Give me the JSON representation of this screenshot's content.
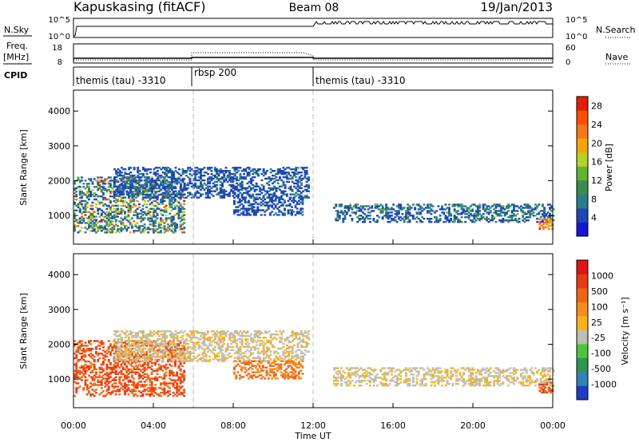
{
  "header": {
    "title": "Kapuskasing (fitACF)",
    "beam": "Beam 08",
    "date": "19/Jan/2013"
  },
  "top_panels": {
    "nsky_label": "N.Sky",
    "nsky_ticks": [
      "10^5",
      "10^0"
    ],
    "nsearch_label": "N.Search",
    "nsearch_ticks": [
      "10^5",
      "10^0"
    ],
    "freq_label_1": "Freq.",
    "freq_label_2": "[MHz]",
    "freq_ticks": [
      "18",
      "8"
    ],
    "nave_label": "Nave",
    "nave_ticks": [
      "60",
      "0"
    ],
    "cpid_label": "CPID",
    "cpid_segments": [
      {
        "label": "themis (tau) -3310",
        "start_hour": 0,
        "end_hour": 6
      },
      {
        "label": "rbsp 200",
        "start_hour": 6,
        "end_hour": 12
      },
      {
        "label": "themis (tau) -3310",
        "start_hour": 12,
        "end_hour": 24
      }
    ]
  },
  "colors": {
    "power_scale": [
      "#1414d2",
      "#1e46b4",
      "#287d8c",
      "#3c8c50",
      "#5fb432",
      "#b4d228",
      "#f5a50a",
      "#f57814",
      "#ff5000",
      "#e11e0a"
    ],
    "velocity_scale": [
      "#1e3cc8",
      "#3282b4",
      "#2d9650",
      "#50c33c",
      "#bebeb4",
      "#f5b41e",
      "#f58c1e",
      "#f06414",
      "#e63c14",
      "#e11414"
    ]
  },
  "chart_data": [
    {
      "type": "heatmap",
      "title": "Power",
      "ylabel": "Slant Range [km]",
      "xlabel": "",
      "xlim": [
        0,
        24
      ],
      "ylim": [
        180,
        4600
      ],
      "yticks": [
        "1000",
        "2000",
        "3000",
        "4000"
      ],
      "colorbar": {
        "label": "Power [dB]",
        "ticks": [
          "4",
          "8",
          "12",
          "16",
          "20",
          "24",
          "28"
        ],
        "range": [
          0,
          30
        ]
      },
      "features": [
        {
          "region": "near-range band",
          "start_hour": 0.0,
          "end_hour": 5.5,
          "range_km": [
            500,
            2100
          ],
          "dB": [
            4,
            30
          ]
        },
        {
          "region": "upper arc",
          "start_hour": 2.0,
          "end_hour": 11.8,
          "range_km": [
            1500,
            2400
          ],
          "dB": [
            4,
            10
          ]
        },
        {
          "region": "mid-day patches",
          "start_hour": 8.0,
          "end_hour": 11.5,
          "range_km": [
            1000,
            1500
          ],
          "dB": [
            4,
            8
          ]
        },
        {
          "region": "evening band",
          "start_hour": 13.0,
          "end_hour": 24.0,
          "range_km": [
            800,
            1300
          ],
          "dB": [
            4,
            16
          ]
        },
        {
          "region": "late patch",
          "start_hour": 23.3,
          "end_hour": 24.0,
          "range_km": [
            600,
            900
          ],
          "dB": [
            20,
            30
          ]
        }
      ]
    },
    {
      "type": "heatmap",
      "title": "Velocity",
      "ylabel": "Slant Range [km]",
      "xlabel": "Time UT",
      "xlim": [
        0,
        24
      ],
      "ylim": [
        180,
        4600
      ],
      "xticks": [
        "00:00",
        "04:00",
        "08:00",
        "12:00",
        "16:00",
        "20:00",
        "00:00"
      ],
      "yticks": [
        "1000",
        "2000",
        "3000",
        "4000"
      ],
      "colorbar": {
        "label": "Velocity [m s⁻¹]",
        "ticks": [
          "1000",
          "500",
          "100",
          "25",
          "-25",
          "-100",
          "-500",
          "-1000"
        ]
      },
      "features": [
        {
          "region": "near-range band",
          "start_hour": 0.0,
          "end_hour": 5.5,
          "range_km": [
            500,
            2100
          ],
          "velocity_ms": [
            -500,
            -25
          ]
        },
        {
          "region": "upper arc",
          "start_hour": 2.0,
          "end_hour": 11.8,
          "range_km": [
            1500,
            2400
          ],
          "velocity_ms": [
            -25,
            25
          ]
        },
        {
          "region": "mid-day patches",
          "start_hour": 8.0,
          "end_hour": 11.5,
          "range_km": [
            1000,
            1500
          ],
          "velocity_ms": [
            -100,
            -25
          ]
        },
        {
          "region": "evening band",
          "start_hour": 13.0,
          "end_hour": 24.0,
          "range_km": [
            800,
            1300
          ],
          "velocity_ms": [
            -25,
            25
          ]
        },
        {
          "region": "late patch",
          "start_hour": 23.3,
          "end_hour": 24.0,
          "range_km": [
            600,
            900
          ],
          "velocity_ms": [
            -500,
            -100
          ]
        }
      ]
    }
  ]
}
